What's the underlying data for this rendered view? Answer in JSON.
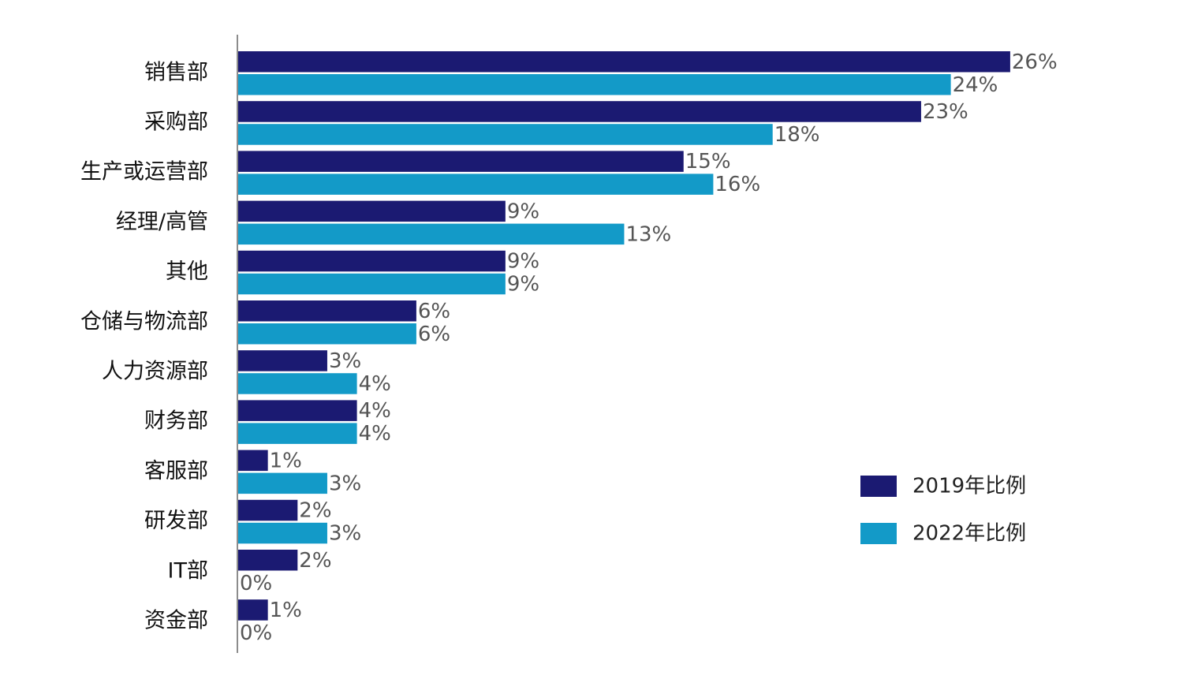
{
  "chart_data": {
    "type": "bar",
    "orientation": "horizontal",
    "categories": [
      "销售部",
      "采购部",
      "生产或运营部",
      "经理/高管",
      "其他",
      "仓储与物流部",
      "人力资源部",
      "财务部",
      "客服部",
      "研发部",
      "IT部",
      "资金部"
    ],
    "series": [
      {
        "name": "2019年比例",
        "color": "#1b1a72",
        "values": [
          26,
          23,
          15,
          9,
          9,
          6,
          3,
          4,
          1,
          2,
          2,
          1
        ],
        "labels": [
          "26%",
          "23%",
          "15%",
          "9%",
          "9%",
          "6%",
          "3%",
          "4%",
          "1%",
          "2%",
          "2%",
          "1%"
        ]
      },
      {
        "name": "2022年比例",
        "color": "#139ac8",
        "values": [
          24,
          18,
          16,
          13,
          9,
          6,
          4,
          4,
          3,
          3,
          0,
          0
        ],
        "labels": [
          "24%",
          "18%",
          "16%",
          "13%",
          "9%",
          "6%",
          "4%",
          "4%",
          "3%",
          "3%",
          "0%",
          "0%"
        ]
      }
    ],
    "unit": "%",
    "legend_position": "bottom-right",
    "grid": false
  }
}
